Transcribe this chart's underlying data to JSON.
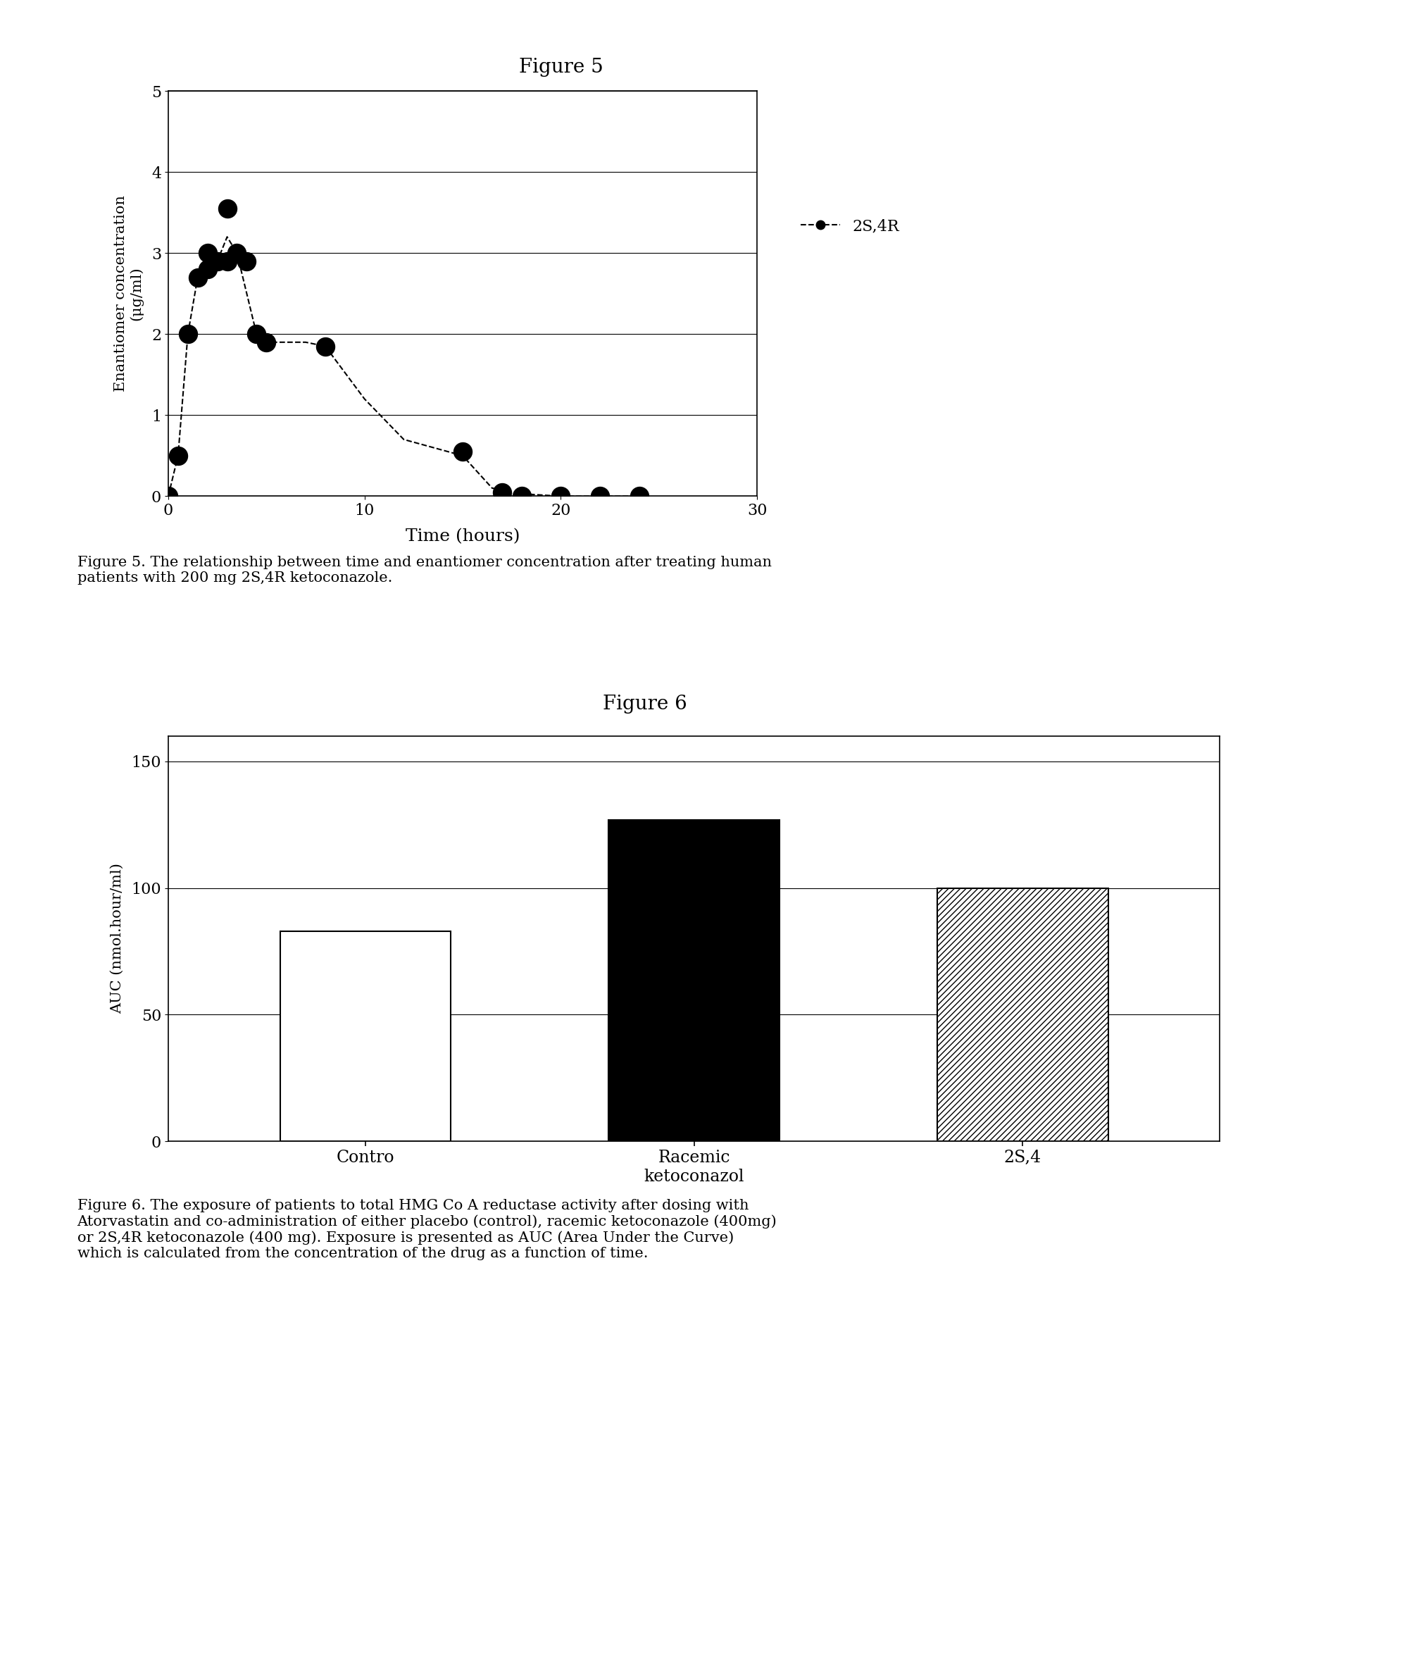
{
  "fig5_title": "Figure 5",
  "fig5_xlabel": "Time (hours)",
  "fig5_ylabel": "Enantiomer concentration\n(μg/ml)",
  "fig5_xlim": [
    0,
    30
  ],
  "fig5_ylim": [
    0,
    5
  ],
  "fig5_xticks": [
    0,
    10,
    20,
    30
  ],
  "fig5_yticks": [
    0,
    1,
    2,
    3,
    4,
    5
  ],
  "fig5_scatter_x": [
    0,
    0.5,
    1.0,
    1.5,
    2.0,
    2.0,
    2.5,
    3.0,
    3.0,
    3.5,
    4.0,
    4.5,
    5.0,
    8.0,
    15.0,
    17.0,
    18.0,
    20.0,
    22.0,
    24.0
  ],
  "fig5_scatter_y": [
    0.0,
    0.5,
    2.0,
    2.7,
    2.8,
    3.0,
    2.9,
    3.55,
    2.9,
    3.0,
    2.9,
    2.0,
    1.9,
    1.85,
    0.55,
    0.05,
    0.0,
    0.0,
    0.0,
    0.0
  ],
  "fig5_line_x": [
    0,
    0.5,
    1.0,
    1.5,
    2.0,
    2.5,
    3.0,
    3.5,
    4.5,
    5.0,
    7.0,
    8.0,
    10.0,
    12.0,
    15.0,
    16.5,
    18.0,
    20.0,
    22.0,
    24.0
  ],
  "fig5_line_y": [
    0,
    0.5,
    2.0,
    2.7,
    2.9,
    2.9,
    3.2,
    3.0,
    2.0,
    1.9,
    1.9,
    1.85,
    1.2,
    0.7,
    0.5,
    0.1,
    0.03,
    0.0,
    0.0,
    0.0
  ],
  "fig5_legend_label": "2S,4R",
  "fig5_caption": "Figure 5. The relationship between time and enantiomer concentration after treating human\npatients with 200 mg 2S,4R ketoconazole.",
  "fig6_title": "Figure 6",
  "fig6_ylabel": "AUC (nmol.hour/ml)",
  "fig6_ylim": [
    0,
    160
  ],
  "fig6_yticks": [
    0,
    50,
    100,
    150
  ],
  "fig6_categories": [
    "Contro",
    "Racemic\nketoconazol",
    "2S,4"
  ],
  "fig6_values": [
    83,
    127,
    100
  ],
  "fig6_caption": "Figure 6. The exposure of patients to total HMG Co A reductase activity after dosing with\nAtorvastatin and co-administration of either placebo (control), racemic ketoconazole (400mg)\nor 2S,4R ketoconazole (400 mg). Exposure is presented as AUC (Area Under the Curve)\nwhich is calculated from the concentration of the drug as a function of time.",
  "background_color": "#ffffff",
  "text_color": "#000000"
}
